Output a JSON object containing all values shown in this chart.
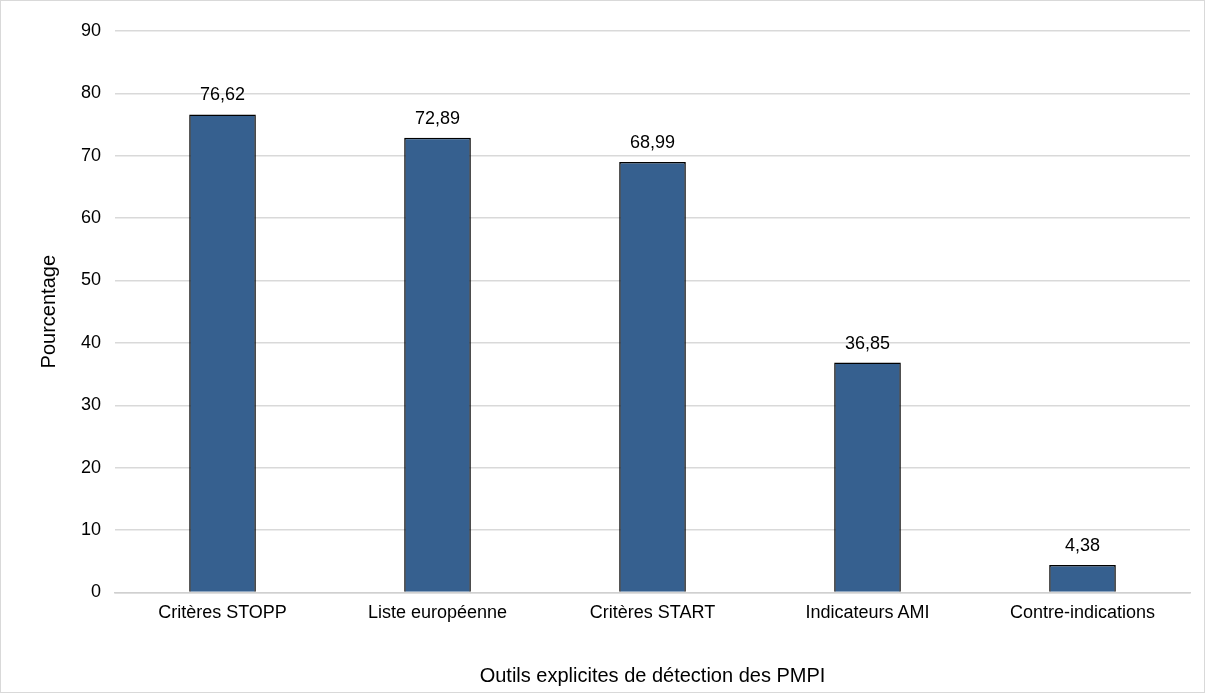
{
  "chart_data": {
    "type": "bar",
    "xlabel": "Outils explicites de détection des PMPI",
    "ylabel": "Pourcentage",
    "categories": [
      "Critères STOPP",
      "Liste européenne",
      "Critères START",
      "Indicateurs AMI",
      "Contre-indications"
    ],
    "values": [
      76.62,
      72.89,
      68.99,
      36.85,
      4.38
    ],
    "value_labels": [
      "76,62",
      "72,89",
      "68,99",
      "36,85",
      "4,38"
    ],
    "color": "#36608f",
    "ylim": [
      0,
      90
    ],
    "yticks": [
      0,
      10,
      20,
      30,
      40,
      50,
      60,
      70,
      80,
      90
    ],
    "grid": "y",
    "legend": false
  }
}
